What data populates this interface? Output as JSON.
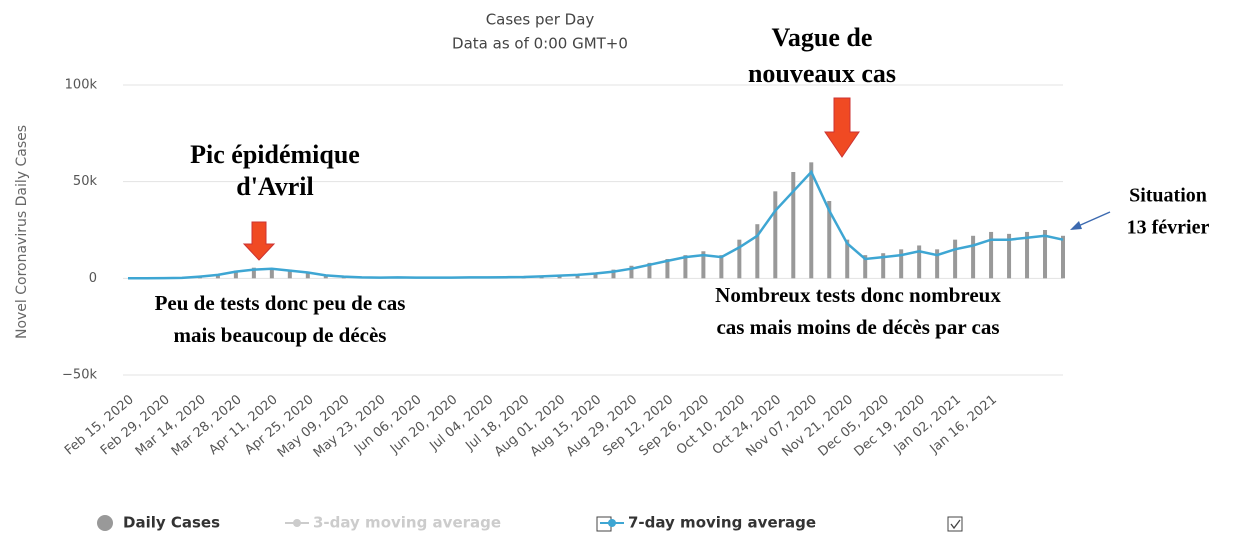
{
  "chart_data": {
    "type": "bar_line",
    "title": "Cases per Day",
    "subtitle": "Data as of 0:00 GMT+0",
    "y_label": "Novel Coronavirus Daily Cases",
    "categories": [
      "Feb 15, 2020",
      null,
      "Feb 29, 2020",
      null,
      "Mar 14, 2020",
      null,
      "Mar 28, 2020",
      null,
      "Apr 11, 2020",
      null,
      "Apr 25, 2020",
      null,
      "May 09, 2020",
      null,
      "May 23, 2020",
      null,
      "Jun 06, 2020",
      null,
      "Jun 20, 2020",
      null,
      "Jul 04, 2020",
      null,
      "Jul 18, 2020",
      null,
      "Aug 01, 2020",
      null,
      "Aug 15, 2020",
      null,
      "Aug 29, 2020",
      null,
      "Sep 12, 2020",
      null,
      "Sep 26, 2020",
      null,
      "Oct 10, 2020",
      null,
      "Oct 24, 2020",
      null,
      "Nov 07, 2020",
      null,
      "Nov 21, 2020",
      null,
      "Dec 05, 2020",
      null,
      "Dec 19, 2020",
      null,
      "Jan 02, 2021",
      null,
      "Jan 16, 2021",
      null,
      null,
      null,
      null
    ],
    "series": [
      {
        "name": "Daily Cases",
        "color": "#999999",
        "type": "bar",
        "values": [
          0,
          0,
          100,
          300,
          1000,
          2000,
          4000,
          5500,
          5000,
          4500,
          3000,
          1500,
          1000,
          500,
          400,
          600,
          500,
          400,
          500,
          600,
          600,
          700,
          900,
          1200,
          1600,
          2200,
          3000,
          4500,
          6500,
          8000,
          10000,
          12000,
          14000,
          12000,
          20000,
          28000,
          45000,
          55000,
          60000,
          40000,
          20000,
          12000,
          13000,
          15000,
          17000,
          15000,
          20000,
          22000,
          24000,
          23000,
          24000,
          25000,
          22000
        ]
      },
      {
        "name": "3-day moving average",
        "color": "#cccccc",
        "checked": false
      },
      {
        "name": "7-day moving average",
        "color": "#3ea6d3",
        "type": "line",
        "checked": true,
        "values": [
          0,
          0,
          100,
          200,
          900,
          1800,
          3500,
          4500,
          5000,
          4000,
          3000,
          1500,
          900,
          500,
          400,
          500,
          400,
          400,
          400,
          500,
          500,
          600,
          700,
          1000,
          1400,
          1800,
          2500,
          3500,
          5000,
          7000,
          9000,
          11000,
          12000,
          11000,
          16000,
          22000,
          35000,
          45000,
          55000,
          35000,
          18000,
          10000,
          11000,
          12000,
          14000,
          12000,
          15000,
          17000,
          20000,
          20000,
          21000,
          22000,
          20000
        ]
      }
    ],
    "ylim": [
      -50000,
      100000
    ],
    "yticks": [
      {
        "value": -50000,
        "label": "−50k"
      },
      0,
      {
        "value": 50000,
        "label": "50k"
      },
      {
        "value": 100000,
        "label": "100k"
      }
    ],
    "grid": true,
    "annotations": [
      {
        "lines": [
          "Pic épidémique",
          "d'Avril"
        ]
      },
      {
        "lines": [
          "Vague de",
          "nouveaux cas"
        ]
      },
      {
        "lines": [
          "Peu de tests donc peu de cas",
          "mais  beaucoup de décès"
        ]
      },
      {
        "lines": [
          "Nombreux tests donc nombreux",
          "cas mais  moins de décès par cas"
        ]
      },
      {
        "lines": [
          "Situation",
          "13 février"
        ]
      }
    ]
  }
}
